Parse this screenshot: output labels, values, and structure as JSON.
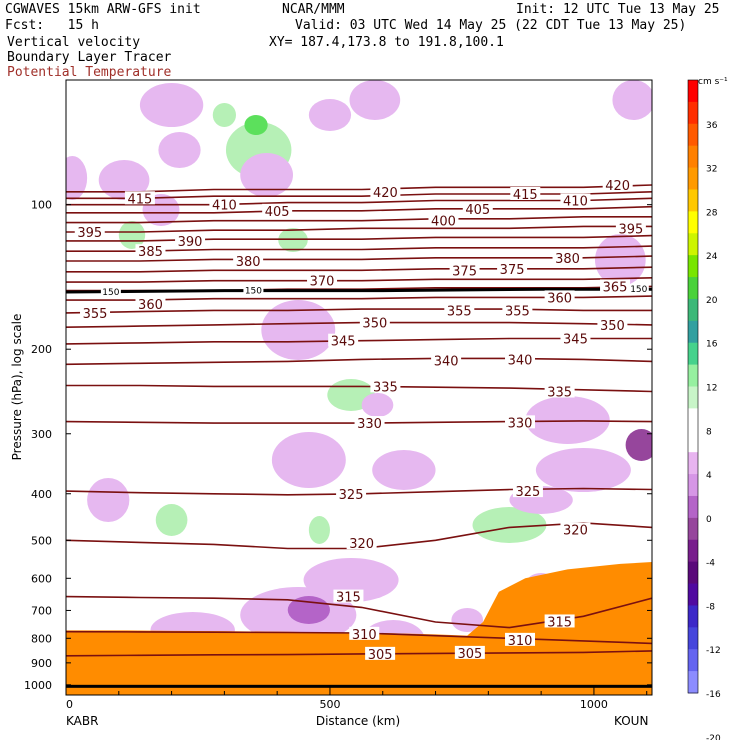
{
  "header": {
    "line1_left": "CGWAVES 15km ARW-GFS init",
    "line1_mid": "NCAR/MMM",
    "line1_right": "Init: 12 UTC Tue 13 May 25",
    "fcst": "Fcst:   15 h",
    "valid": "Valid: 03 UTC Wed 14 May 25 (22 CDT Tue 13 May 25)",
    "field1": "Vertical velocity",
    "field2": "Boundary Layer Tracer",
    "field3": "Potential Temperature",
    "xy": "XY= 187.4,173.8 to 191.8,100.1"
  },
  "chart_data": {
    "type": "cross-section",
    "xlabel": "Distance (km)",
    "ylabel": "Pressure (hPa), log scale",
    "xlim": [
      0,
      1110
    ],
    "ylim": [
      1050,
      55
    ],
    "y_scale": "log",
    "x_ticks": [
      0,
      500,
      1000
    ],
    "y_ticks": [
      100,
      200,
      300,
      400,
      500,
      600,
      700,
      800,
      900,
      1000
    ],
    "x_endpoints": {
      "left": "KABR",
      "right": "KOUN"
    },
    "colorbar": {
      "unit": "cm s⁻¹",
      "labels": [
        "36",
        "32",
        "28",
        "24",
        "20",
        "16",
        "12",
        "8",
        "4",
        "0",
        "-4",
        "-8",
        "-12",
        "-16",
        "-20"
      ],
      "colors": [
        "#ff0000",
        "#ff2e00",
        "#ff5a00",
        "#ff8000",
        "#ff9a00",
        "#ffc800",
        "#ffff00",
        "#cdf500",
        "#78e600",
        "#4ad23a",
        "#3cb878",
        "#32a0a0",
        "#46d28c",
        "#96f0a0",
        "#c8f5c8",
        "#ffffff",
        "#ffffff",
        "#e8b4f0",
        "#d696e6",
        "#b464c8",
        "#96469c",
        "#781e8c",
        "#5a0a7a",
        "#500aa0",
        "#3c28c8",
        "#4646dc",
        "#6464f0",
        "#8c8cff"
      ]
    },
    "theta_lines": [
      {
        "theta": 305,
        "p": [
          870,
          868,
          866,
          865,
          862,
          860,
          858,
          856,
          850
        ]
      },
      {
        "theta": 310,
        "p": [
          775,
          776,
          777,
          778,
          780,
          790,
          800,
          810,
          820
        ]
      },
      {
        "theta": 315,
        "p": [
          655,
          658,
          660,
          665,
          690,
          740,
          760,
          720,
          660
        ]
      },
      {
        "theta": 320,
        "p": [
          500,
          505,
          510,
          520,
          520,
          500,
          470,
          460,
          470
        ]
      },
      {
        "theta": 325,
        "p": [
          395,
          398,
          400,
          402,
          400,
          396,
          392,
          390,
          392
        ]
      },
      {
        "theta": 330,
        "p": [
          283,
          284,
          285,
          285,
          285,
          284,
          283,
          282,
          283
        ]
      },
      {
        "theta": 335,
        "p": [
          238,
          238,
          239,
          239,
          239,
          240,
          241,
          243,
          245
        ]
      },
      {
        "theta": 340,
        "p": [
          215,
          214,
          213,
          212,
          210,
          209,
          209,
          210,
          212
        ]
      },
      {
        "theta": 345,
        "p": [
          195,
          194,
          193,
          193,
          192,
          191,
          190,
          190,
          190
        ]
      },
      {
        "theta": 350,
        "p": [
          180,
          179,
          178,
          177,
          176,
          176,
          176,
          177,
          178
        ]
      },
      {
        "theta": 355,
        "p": [
          168,
          167,
          166,
          166,
          165,
          165,
          165,
          166,
          166
        ]
      },
      {
        "theta": 360,
        "p": [
          158,
          158,
          157,
          157,
          157,
          156,
          156,
          156,
          155
        ]
      },
      {
        "theta": 365,
        "p": [
          151,
          151,
          151,
          150,
          150,
          149,
          149,
          149,
          148
        ]
      },
      {
        "theta": 370,
        "p": [
          145,
          145,
          144,
          144,
          144,
          143,
          143,
          143,
          142
        ]
      },
      {
        "theta": 375,
        "p": [
          138,
          138,
          137,
          137,
          137,
          136,
          136,
          136,
          135
        ]
      },
      {
        "theta": 380,
        "p": [
          131,
          131,
          130,
          130,
          130,
          129,
          129,
          129,
          128
        ]
      },
      {
        "theta": 385,
        "p": [
          125,
          125,
          124,
          124,
          124,
          123,
          123,
          123,
          122
        ]
      },
      {
        "theta": 390,
        "p": [
          119,
          119,
          118,
          118,
          118,
          117,
          117,
          117,
          116
        ]
      },
      {
        "theta": 395,
        "p": [
          114,
          114,
          113,
          113,
          112,
          112,
          112,
          111,
          111
        ]
      },
      {
        "theta": 400,
        "p": [
          109,
          109,
          108,
          108,
          108,
          107,
          107,
          106,
          106
        ]
      },
      {
        "theta": 405,
        "p": [
          104,
          104,
          104,
          103,
          103,
          102,
          102,
          102,
          101
        ]
      },
      {
        "theta": 410,
        "p": [
          100,
          100,
          100,
          99,
          99,
          98,
          98,
          98,
          97
        ]
      },
      {
        "theta": 415,
        "p": [
          97,
          97,
          96,
          96,
          96,
          95,
          95,
          95,
          94
        ]
      },
      {
        "theta": 420,
        "p": [
          94,
          94,
          93,
          93,
          93,
          92,
          92,
          92,
          91
        ]
      }
    ],
    "theta_x": [
      0,
      140,
      280,
      420,
      560,
      700,
      840,
      980,
      1110
    ],
    "theta_labels": [
      {
        "text": "305",
        "x": 595,
        "p": 862
      },
      {
        "text": "305",
        "x": 765,
        "p": 858
      },
      {
        "text": "310",
        "x": 565,
        "p": 783
      },
      {
        "text": "310",
        "x": 860,
        "p": 806
      },
      {
        "text": "315",
        "x": 535,
        "p": 655
      },
      {
        "text": "315",
        "x": 935,
        "p": 738
      },
      {
        "text": "320",
        "x": 560,
        "p": 507
      },
      {
        "text": "320",
        "x": 965,
        "p": 475
      },
      {
        "text": "325",
        "x": 540,
        "p": 400
      },
      {
        "text": "325",
        "x": 875,
        "p": 395
      },
      {
        "text": "330",
        "x": 575,
        "p": 285
      },
      {
        "text": "330",
        "x": 860,
        "p": 284
      },
      {
        "text": "335",
        "x": 605,
        "p": 239
      },
      {
        "text": "335",
        "x": 935,
        "p": 245
      },
      {
        "text": "340",
        "x": 720,
        "p": 211
      },
      {
        "text": "340",
        "x": 860,
        "p": 210
      },
      {
        "text": "345",
        "x": 525,
        "p": 192
      },
      {
        "text": "345",
        "x": 965,
        "p": 190
      },
      {
        "text": "350",
        "x": 585,
        "p": 176
      },
      {
        "text": "350",
        "x": 1035,
        "p": 178
      },
      {
        "text": "355",
        "x": 55,
        "p": 168
      },
      {
        "text": "355",
        "x": 745,
        "p": 166
      },
      {
        "text": "355",
        "x": 855,
        "p": 166
      },
      {
        "text": "360",
        "x": 160,
        "p": 161
      },
      {
        "text": "360",
        "x": 935,
        "p": 156
      },
      {
        "text": "365",
        "x": 1040,
        "p": 148
      },
      {
        "text": "370",
        "x": 485,
        "p": 144
      },
      {
        "text": "375",
        "x": 755,
        "p": 137
      },
      {
        "text": "375",
        "x": 845,
        "p": 136
      },
      {
        "text": "380",
        "x": 345,
        "p": 131
      },
      {
        "text": "380",
        "x": 950,
        "p": 129
      },
      {
        "text": "385",
        "x": 160,
        "p": 125
      },
      {
        "text": "390",
        "x": 235,
        "p": 119
      },
      {
        "text": "395",
        "x": 45,
        "p": 114
      },
      {
        "text": "395",
        "x": 1070,
        "p": 112
      },
      {
        "text": "400",
        "x": 715,
        "p": 108
      },
      {
        "text": "405",
        "x": 400,
        "p": 103
      },
      {
        "text": "405",
        "x": 780,
        "p": 102
      },
      {
        "text": "410",
        "x": 300,
        "p": 100
      },
      {
        "text": "410",
        "x": 965,
        "p": 98
      },
      {
        "text": "415",
        "x": 140,
        "p": 97
      },
      {
        "text": "415",
        "x": 870,
        "p": 95
      },
      {
        "text": "420",
        "x": 605,
        "p": 94
      },
      {
        "text": "420",
        "x": 1045,
        "p": 91
      }
    ],
    "tropopause_labels": [
      {
        "text": "150",
        "x": 85,
        "p": 152
      },
      {
        "text": "150",
        "x": 355,
        "p": 151
      },
      {
        "text": "150",
        "x": 1085,
        "p": 150
      }
    ]
  }
}
